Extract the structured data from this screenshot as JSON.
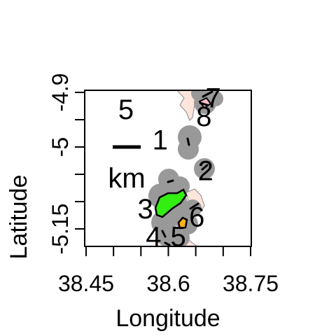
{
  "map": {
    "x_axis": {
      "title": "Longitude",
      "range": [
        38.4,
        38.7
      ],
      "ticks": [
        38.45,
        38.5,
        38.55,
        38.6,
        38.65,
        38.7,
        38.75
      ],
      "tick_labels": [
        {
          "value": 38.45,
          "label": "38.45"
        },
        {
          "value": 38.6,
          "label": "38.6"
        },
        {
          "value": 38.75,
          "label": "38.75"
        }
      ]
    },
    "y_axis": {
      "title": "Latitude",
      "range": [
        -5.17,
        -4.88
      ],
      "ticks": [
        -4.9,
        -4.95,
        -5.0,
        -5.05,
        -5.1,
        -5.15
      ],
      "tick_labels": [
        {
          "value": -4.9,
          "label": "-4.9"
        },
        {
          "value": -5.0,
          "label": "-5"
        },
        {
          "value": -5.15,
          "label": "-5.15"
        }
      ]
    },
    "scale_bar": {
      "value": "5",
      "unit": "km"
    },
    "site_labels": [
      {
        "label": "1",
        "lon": 38.585,
        "lat": -4.988
      },
      {
        "label": "2",
        "lon": 38.668,
        "lat": -5.044
      },
      {
        "label": "3",
        "lon": 38.558,
        "lat": -5.114
      },
      {
        "label": "4",
        "lon": 38.573,
        "lat": -5.165
      },
      {
        "label": "5",
        "lon": 38.618,
        "lat": -5.165
      },
      {
        "label": "6",
        "lon": 38.652,
        "lat": -5.129
      },
      {
        "label": "7",
        "lon": 38.682,
        "lat": -4.911
      },
      {
        "label": "8",
        "lon": 38.665,
        "lat": -4.945
      }
    ],
    "colors": {
      "buffer": "#999999",
      "land": "#fde5dc",
      "outline": "#000000",
      "green_area": "#33ee11",
      "orange_area": "#ffb21a",
      "pink_area": "#ffc0cb"
    }
  }
}
